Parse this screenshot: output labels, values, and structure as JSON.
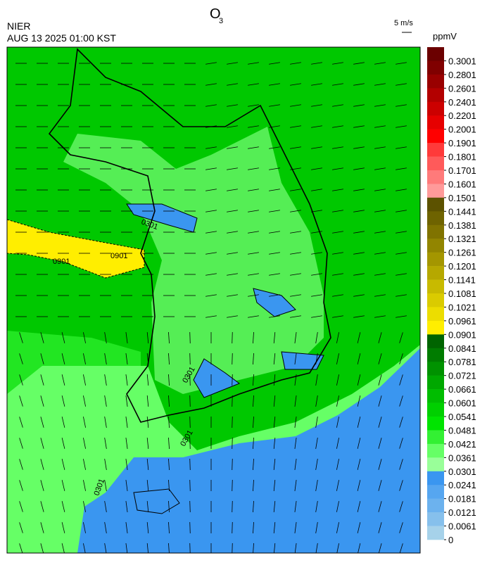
{
  "header": {
    "title": "O",
    "title_sub": "3",
    "agency": "NIER",
    "datetime": "AUG 13 2025 01:00 KST",
    "wind_scale": "5 m/s",
    "unit": "ppmV"
  },
  "colorbar": {
    "levels": [
      0.3001,
      0.2801,
      0.2601,
      0.2401,
      0.2201,
      0.2001,
      0.1901,
      0.1801,
      0.1701,
      0.1601,
      0.1501,
      0.1441,
      0.1381,
      0.1321,
      0.1261,
      0.1201,
      0.1141,
      0.1081,
      0.1021,
      0.0961,
      0.0901,
      0.0841,
      0.0781,
      0.0721,
      0.0661,
      0.0601,
      0.0541,
      0.0481,
      0.0421,
      0.0361,
      0.0301,
      0.0241,
      0.0181,
      0.0121,
      0.0061,
      0
    ],
    "colors": [
      "#6b0000",
      "#800000",
      "#990000",
      "#b30000",
      "#cc0000",
      "#e60000",
      "#ff0000",
      "#ff3a3a",
      "#ff5a5a",
      "#ff7a7a",
      "#ff9a9a",
      "#5c5200",
      "#6e6300",
      "#807300",
      "#928500",
      "#a49600",
      "#b6a800",
      "#c8ba00",
      "#dacb00",
      "#ecdd00",
      "#ffee00",
      "#006400",
      "#007c00",
      "#009200",
      "#00a800",
      "#00bd00",
      "#00d000",
      "#00e400",
      "#33f033",
      "#66ff66",
      "#99ff99",
      "#3a96f0",
      "#56a6f0",
      "#6cb2ee",
      "#86c0ec",
      "#a6d2ea"
    ]
  },
  "contour_labels": [
    "0901",
    "0901",
    "0301",
    "0301",
    "0301",
    "0301"
  ]
}
